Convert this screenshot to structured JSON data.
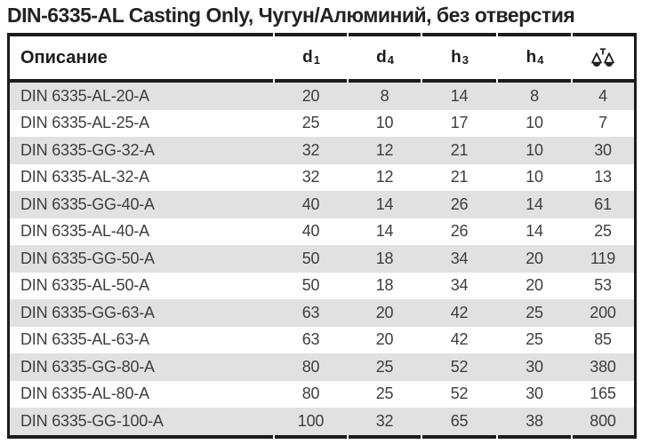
{
  "title": "DIN-6335-AL Casting Only, Чугун/Алюминий, без отверстия",
  "table": {
    "columns": [
      {
        "key": "description",
        "label": "Описание"
      },
      {
        "key": "d1",
        "label": "d",
        "sub": "1"
      },
      {
        "key": "d4",
        "label": "d",
        "sub": "4"
      },
      {
        "key": "h3",
        "label": "h",
        "sub": "3"
      },
      {
        "key": "h4",
        "label": "h",
        "sub": "4"
      },
      {
        "key": "weight",
        "icon": "scales-icon"
      }
    ],
    "rows": [
      {
        "description": "DIN 6335-AL-20-A",
        "d1": "20",
        "d4": "8",
        "h3": "14",
        "h4": "8",
        "weight": "4"
      },
      {
        "description": "DIN 6335-AL-25-A",
        "d1": "25",
        "d4": "10",
        "h3": "17",
        "h4": "10",
        "weight": "7"
      },
      {
        "description": "DIN 6335-GG-32-A",
        "d1": "32",
        "d4": "12",
        "h3": "21",
        "h4": "10",
        "weight": "30"
      },
      {
        "description": "DIN 6335-AL-32-A",
        "d1": "32",
        "d4": "12",
        "h3": "21",
        "h4": "10",
        "weight": "13"
      },
      {
        "description": "DIN 6335-GG-40-A",
        "d1": "40",
        "d4": "14",
        "h3": "26",
        "h4": "14",
        "weight": "61"
      },
      {
        "description": "DIN 6335-AL-40-A",
        "d1": "40",
        "d4": "14",
        "h3": "26",
        "h4": "14",
        "weight": "25"
      },
      {
        "description": "DIN 6335-GG-50-A",
        "d1": "50",
        "d4": "18",
        "h3": "34",
        "h4": "20",
        "weight": "119"
      },
      {
        "description": "DIN 6335-AL-50-A",
        "d1": "50",
        "d4": "18",
        "h3": "34",
        "h4": "20",
        "weight": "53"
      },
      {
        "description": "DIN 6335-GG-63-A",
        "d1": "63",
        "d4": "20",
        "h3": "42",
        "h4": "25",
        "weight": "200"
      },
      {
        "description": "DIN 6335-AL-63-A",
        "d1": "63",
        "d4": "20",
        "h3": "42",
        "h4": "25",
        "weight": "85"
      },
      {
        "description": "DIN 6335-GG-80-A",
        "d1": "80",
        "d4": "25",
        "h3": "52",
        "h4": "30",
        "weight": "380"
      },
      {
        "description": "DIN 6335-AL-80-A",
        "d1": "80",
        "d4": "25",
        "h3": "52",
        "h4": "30",
        "weight": "165"
      },
      {
        "description": "DIN 6335-GG-100-A",
        "d1": "100",
        "d4": "32",
        "h3": "65",
        "h4": "38",
        "weight": "800"
      }
    ]
  },
  "colors": {
    "border": "#1c1c1c",
    "row_alt_background": "#e1e1e1",
    "header_text": "#1d1d1d",
    "data_text": "#3e3e3e",
    "title_text": "#232323"
  }
}
